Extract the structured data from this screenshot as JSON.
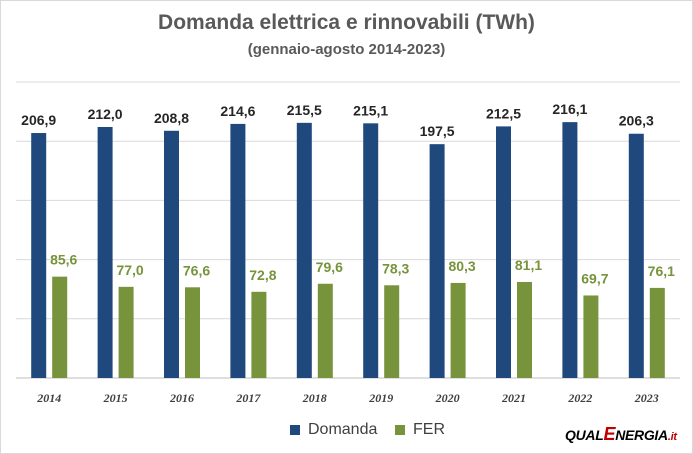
{
  "chart_data": {
    "type": "bar",
    "title": "Domanda elettrica e rinnovabili (TWh)",
    "subtitle": "(gennaio-agosto 2014-2023)",
    "categories": [
      "2014",
      "2015",
      "2016",
      "2017",
      "2018",
      "2019",
      "2020",
      "2021",
      "2022",
      "2023"
    ],
    "series": [
      {
        "name": "Domanda",
        "color": "#1f497d",
        "values": [
          206.9,
          212.0,
          208.8,
          214.6,
          215.5,
          215.1,
          197.5,
          212.5,
          216.1,
          206.3
        ],
        "labels": [
          "206,9",
          "212,0",
          "208,8",
          "214,6",
          "215,5",
          "215,1",
          "197,5",
          "212,5",
          "216,1",
          "206,3"
        ]
      },
      {
        "name": "FER",
        "color": "#77933c",
        "values": [
          85.6,
          77.0,
          76.6,
          72.8,
          79.6,
          78.3,
          80.3,
          81.1,
          69.7,
          76.1
        ],
        "labels": [
          "85,6",
          "77,0",
          "76,6",
          "72,8",
          "79,6",
          "78,3",
          "80,3",
          "81,1",
          "69,7",
          "76,1"
        ]
      }
    ],
    "ylim": [
      0,
      250
    ],
    "grid": true,
    "legend": "bottom"
  },
  "legend": {
    "domanda": "Domanda",
    "fer": "FER"
  },
  "logo": {
    "part1": "QUAL",
    "part2": "E",
    "part3": "NERGIA",
    "part4": ".it"
  }
}
